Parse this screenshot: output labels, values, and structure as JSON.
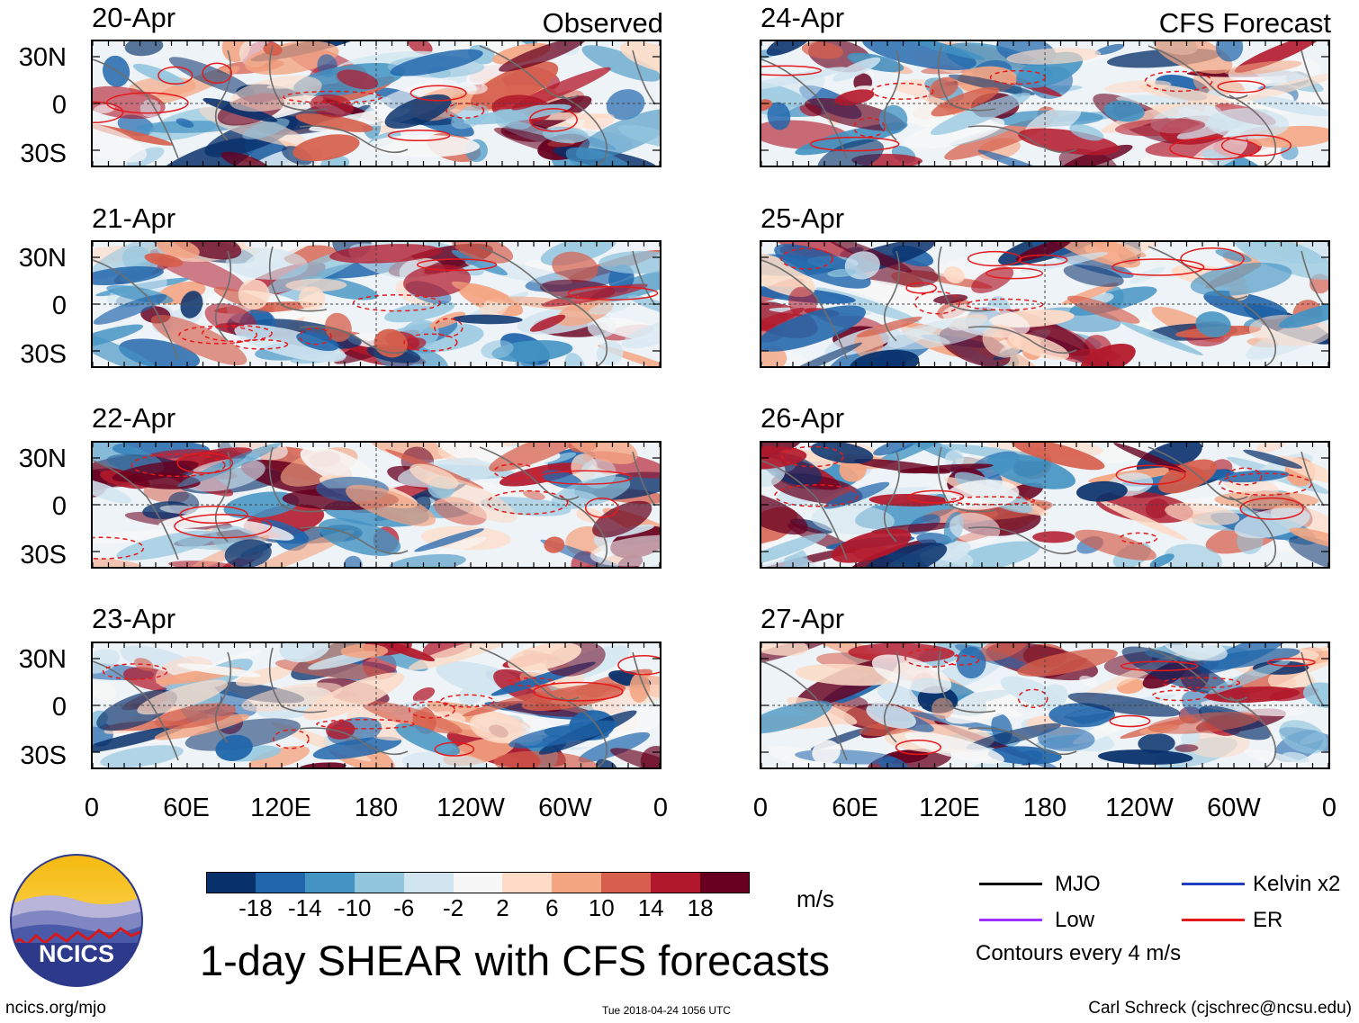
{
  "panels": [
    {
      "date": "20-Apr",
      "heading": "Observed",
      "seed": 11
    },
    {
      "date": "21-Apr",
      "heading": "",
      "seed": 23
    },
    {
      "date": "22-Apr",
      "heading": "",
      "seed": 37
    },
    {
      "date": "23-Apr",
      "heading": "",
      "seed": 41
    },
    {
      "date": "24-Apr",
      "heading": "CFS Forecast",
      "seed": 53
    },
    {
      "date": "25-Apr",
      "heading": "",
      "seed": 67
    },
    {
      "date": "26-Apr",
      "heading": "",
      "seed": 79
    },
    {
      "date": "27-Apr",
      "heading": "",
      "seed": 83
    }
  ],
  "lat_labels": [
    "30N",
    "0",
    "30S"
  ],
  "lon_labels": [
    "0",
    "60E",
    "120E",
    "180",
    "120W",
    "60W",
    "0"
  ],
  "colorbar": {
    "colors": [
      "#08306b",
      "#2166ac",
      "#4393c3",
      "#92c5de",
      "#d1e5f0",
      "#f7f7f7",
      "#fddbc7",
      "#f4a582",
      "#d6604d",
      "#b2182b",
      "#67001f"
    ],
    "ticks": [
      "-18",
      "-14",
      "-10",
      "-6",
      "-2",
      "2",
      "6",
      "10",
      "14",
      "18"
    ],
    "units": "m/s"
  },
  "title": "1-day SHEAR with CFS forecasts",
  "legend": {
    "items": [
      {
        "label": "MJO",
        "color": "#000000"
      },
      {
        "label": "Kelvin x2",
        "color": "#1f3fbf"
      },
      {
        "label": "Low",
        "color": "#9b30ff"
      },
      {
        "label": "ER",
        "color": "#e41a1c"
      }
    ],
    "note": "Contours every 4 m/s"
  },
  "logo_text": "NCICS",
  "footer": {
    "left": "ncics.org/mjo",
    "center": "Tue 2018-04-24 1056 UTC",
    "right": "Carl Schreck (cjschrec@ncsu.edu)"
  }
}
